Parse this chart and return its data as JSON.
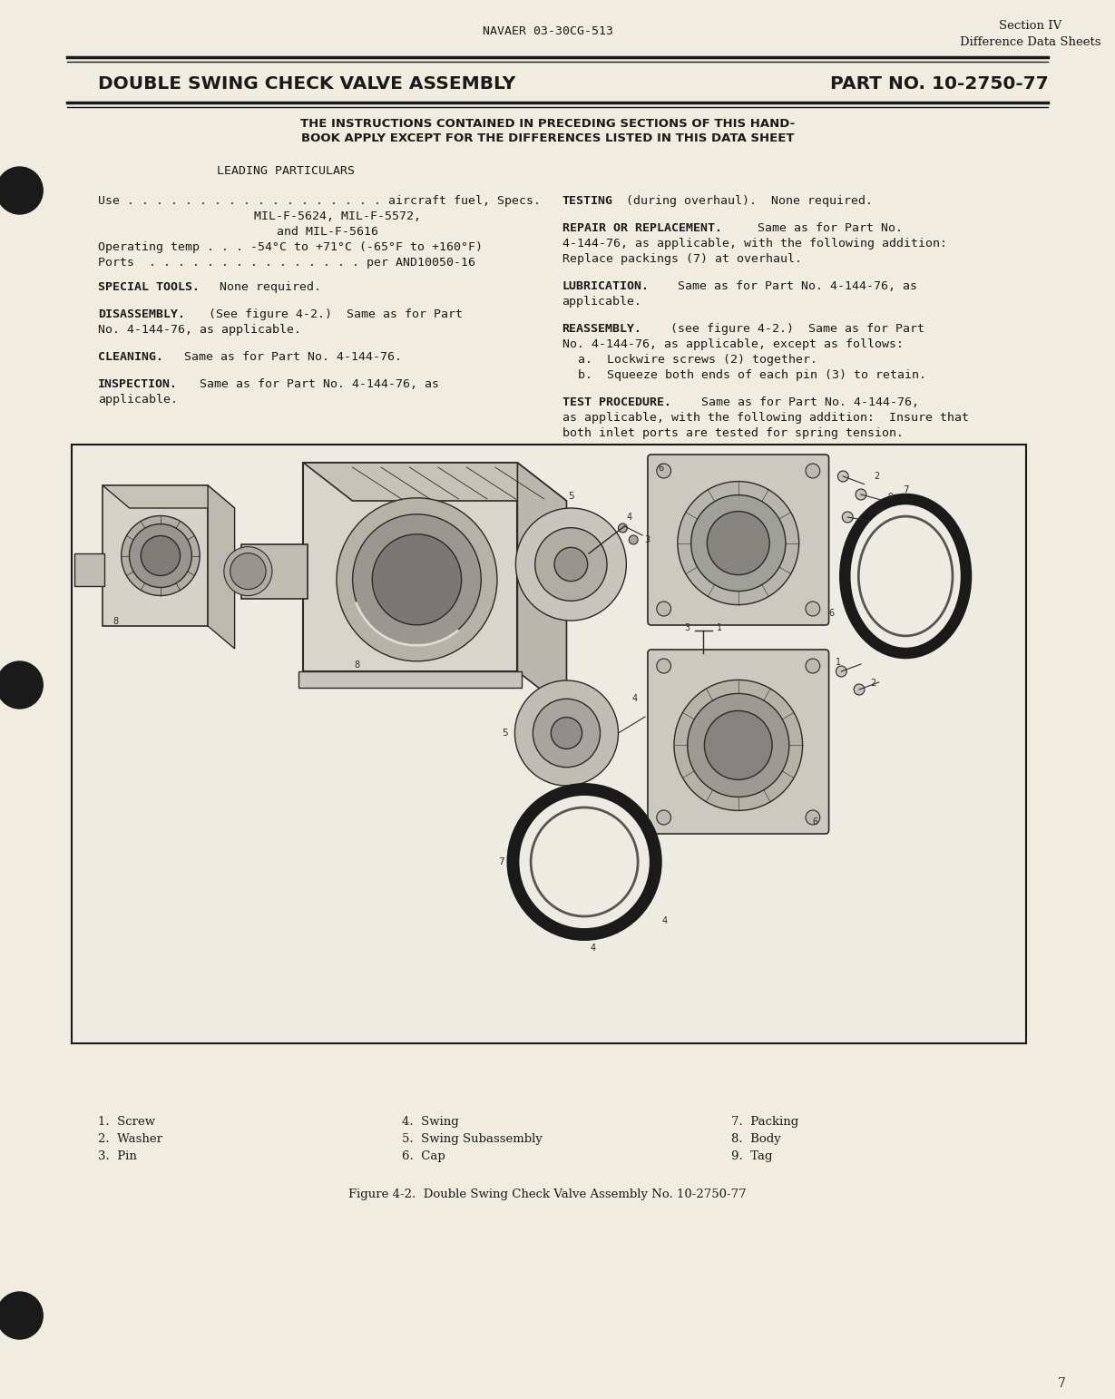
{
  "page_bg": "#f0ece0",
  "header_doc_num": "NAVAER 03-30CG-513",
  "header_section": "Section IV",
  "header_section2": "Difference Data Sheets",
  "title_left": "DOUBLE SWING CHECK VALVE ASSEMBLY",
  "title_right": "PART NO. 10-2750-77",
  "subtitle_line1": "THE INSTRUCTIONS CONTAINED IN PRECEDING SECTIONS OF THIS HAND-",
  "subtitle_line2": "BOOK APPLY EXCEPT FOR THE DIFFERENCES LISTED IN THIS DATA SHEET",
  "figure_caption": "Figure 4-2.  Double Swing Check Valve Assembly No. 10-2750-77",
  "page_number": "7",
  "legend_col1": [
    "1.  Screw",
    "2.  Washer",
    "3.  Pin"
  ],
  "legend_col2": [
    "4.  Swing",
    "5.  Swing Subassembly",
    "6.  Cap"
  ],
  "legend_col3": [
    "7.  Packing",
    "8.  Body",
    "9.  Tag"
  ],
  "line_color": "#1a1a1a",
  "text_color": "#1a1a1a",
  "draw_color": "#2a2a2a",
  "fig_box_bg": "#f0ece0"
}
